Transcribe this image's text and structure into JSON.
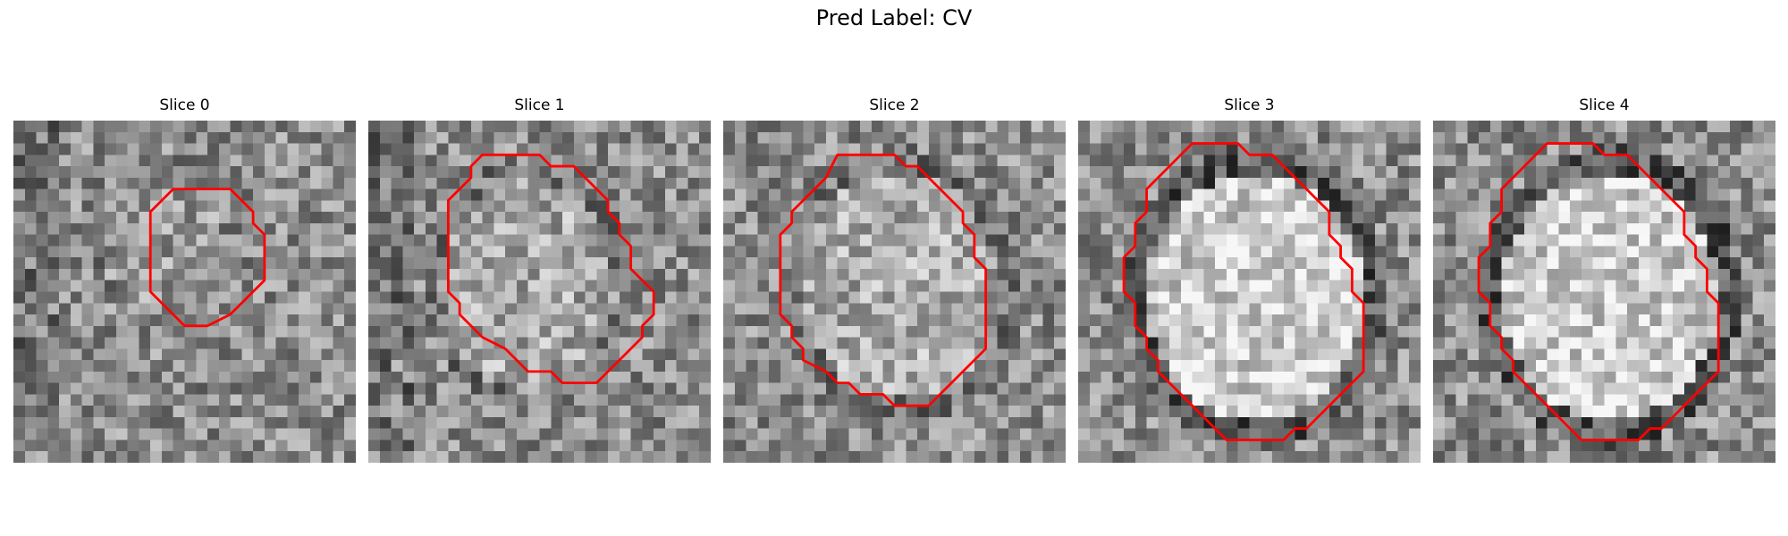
{
  "suptitle": "Pred Label: CV",
  "contour_color": "#ff0000",
  "slices": [
    {
      "title": "Slice 0",
      "seed": 11,
      "blob": 0.15,
      "center": [
        13.0,
        10.5
      ],
      "radius": [
        5.5,
        6.5
      ],
      "contour": [
        [
          14,
          6
        ],
        [
          19,
          6
        ],
        [
          20,
          7
        ],
        [
          21,
          8
        ],
        [
          21,
          9
        ],
        [
          22,
          10
        ],
        [
          22,
          12
        ],
        [
          22,
          14
        ],
        [
          21,
          15
        ],
        [
          20,
          16
        ],
        [
          19,
          17
        ],
        [
          17,
          18
        ],
        [
          15,
          18
        ],
        [
          14,
          17
        ],
        [
          13,
          16
        ],
        [
          12,
          15
        ],
        [
          12,
          13
        ],
        [
          12,
          11
        ],
        [
          12,
          8
        ],
        [
          13,
          7
        ]
      ]
    },
    {
      "title": "Slice 1",
      "seed": 23,
      "blob": 0.35,
      "center": [
        14.0,
        14.5
      ],
      "radius": [
        8.0,
        9.5
      ],
      "contour": [
        [
          10,
          3
        ],
        [
          15,
          3
        ],
        [
          16,
          4
        ],
        [
          18,
          4
        ],
        [
          19,
          5
        ],
        [
          20,
          6
        ],
        [
          21,
          7
        ],
        [
          21,
          8
        ],
        [
          22,
          9
        ],
        [
          22,
          10
        ],
        [
          23,
          11
        ],
        [
          23,
          12
        ],
        [
          23,
          13
        ],
        [
          24,
          14
        ],
        [
          25,
          15
        ],
        [
          25,
          17
        ],
        [
          24,
          18
        ],
        [
          24,
          19
        ],
        [
          23,
          20
        ],
        [
          22,
          21
        ],
        [
          21,
          22
        ],
        [
          20,
          23
        ],
        [
          18,
          23
        ],
        [
          17,
          23
        ],
        [
          16,
          22
        ],
        [
          14,
          22
        ],
        [
          13,
          21
        ],
        [
          12,
          20
        ],
        [
          10,
          19
        ],
        [
          9,
          18
        ],
        [
          8,
          17
        ],
        [
          8,
          16
        ],
        [
          7,
          15
        ],
        [
          7,
          14
        ],
        [
          7,
          12
        ],
        [
          7,
          10
        ],
        [
          7,
          7
        ],
        [
          8,
          6
        ],
        [
          9,
          5
        ],
        [
          9,
          4
        ]
      ]
    },
    {
      "title": "Slice 2",
      "seed": 37,
      "blob": 0.4,
      "center": [
        15.5,
        14.5
      ],
      "radius": [
        9.0,
        10.5
      ],
      "contour": [
        [
          10,
          3
        ],
        [
          15,
          3
        ],
        [
          16,
          4
        ],
        [
          17,
          4
        ],
        [
          18,
          5
        ],
        [
          19,
          6
        ],
        [
          20,
          7
        ],
        [
          21,
          8
        ],
        [
          21,
          9
        ],
        [
          22,
          10
        ],
        [
          22,
          12
        ],
        [
          23,
          13
        ],
        [
          23,
          15
        ],
        [
          23,
          18
        ],
        [
          23,
          20
        ],
        [
          22,
          21
        ],
        [
          21,
          22
        ],
        [
          20,
          23
        ],
        [
          19,
          24
        ],
        [
          18,
          25
        ],
        [
          16,
          25
        ],
        [
          15,
          25
        ],
        [
          14,
          24
        ],
        [
          12,
          24
        ],
        [
          11,
          23
        ],
        [
          10,
          23
        ],
        [
          9,
          22
        ],
        [
          7,
          21
        ],
        [
          7,
          20
        ],
        [
          6,
          19
        ],
        [
          6,
          18
        ],
        [
          5,
          17
        ],
        [
          5,
          15
        ],
        [
          5,
          13
        ],
        [
          5,
          10
        ],
        [
          6,
          9
        ],
        [
          6,
          8
        ],
        [
          7,
          7
        ],
        [
          8,
          6
        ],
        [
          9,
          5
        ]
      ]
    },
    {
      "title": "Slice 3",
      "seed": 51,
      "blob": 0.85,
      "center": [
        15.5,
        15.5
      ],
      "radius": [
        10.0,
        11.5
      ],
      "contour": [
        [
          10,
          2
        ],
        [
          14,
          2
        ],
        [
          15,
          3
        ],
        [
          17,
          3
        ],
        [
          18,
          4
        ],
        [
          19,
          5
        ],
        [
          20,
          6
        ],
        [
          21,
          7
        ],
        [
          22,
          8
        ],
        [
          22,
          10
        ],
        [
          23,
          11
        ],
        [
          23,
          12
        ],
        [
          24,
          13
        ],
        [
          24,
          15
        ],
        [
          25,
          16
        ],
        [
          25,
          19
        ],
        [
          25,
          22
        ],
        [
          24,
          23
        ],
        [
          23,
          24
        ],
        [
          22,
          25
        ],
        [
          21,
          26
        ],
        [
          20,
          27
        ],
        [
          19,
          27
        ],
        [
          18,
          28
        ],
        [
          15,
          28
        ],
        [
          13,
          28
        ],
        [
          12,
          27
        ],
        [
          11,
          26
        ],
        [
          10,
          25
        ],
        [
          9,
          24
        ],
        [
          8,
          23
        ],
        [
          7,
          22
        ],
        [
          7,
          21
        ],
        [
          6,
          20
        ],
        [
          6,
          19
        ],
        [
          5,
          18
        ],
        [
          5,
          16
        ],
        [
          4,
          15
        ],
        [
          4,
          12
        ],
        [
          5,
          11
        ],
        [
          5,
          9
        ],
        [
          6,
          8
        ],
        [
          6,
          6
        ],
        [
          7,
          5
        ],
        [
          8,
          4
        ],
        [
          9,
          3
        ]
      ]
    },
    {
      "title": "Slice 4",
      "seed": 67,
      "blob": 0.85,
      "center": [
        15.5,
        15.5
      ],
      "radius": [
        10.0,
        11.5
      ],
      "contour": [
        [
          10,
          2
        ],
        [
          14,
          2
        ],
        [
          15,
          3
        ],
        [
          17,
          3
        ],
        [
          18,
          4
        ],
        [
          19,
          5
        ],
        [
          20,
          6
        ],
        [
          21,
          7
        ],
        [
          22,
          8
        ],
        [
          22,
          10
        ],
        [
          23,
          11
        ],
        [
          23,
          12
        ],
        [
          24,
          13
        ],
        [
          24,
          15
        ],
        [
          25,
          16
        ],
        [
          25,
          19
        ],
        [
          25,
          22
        ],
        [
          24,
          23
        ],
        [
          23,
          24
        ],
        [
          22,
          25
        ],
        [
          21,
          26
        ],
        [
          20,
          27
        ],
        [
          19,
          27
        ],
        [
          18,
          28
        ],
        [
          15,
          28
        ],
        [
          13,
          28
        ],
        [
          12,
          27
        ],
        [
          11,
          26
        ],
        [
          10,
          25
        ],
        [
          9,
          24
        ],
        [
          8,
          23
        ],
        [
          7,
          22
        ],
        [
          7,
          21
        ],
        [
          6,
          20
        ],
        [
          6,
          19
        ],
        [
          5,
          18
        ],
        [
          5,
          16
        ],
        [
          4,
          15
        ],
        [
          4,
          12
        ],
        [
          5,
          11
        ],
        [
          5,
          9
        ],
        [
          6,
          8
        ],
        [
          6,
          6
        ],
        [
          7,
          5
        ],
        [
          8,
          4
        ],
        [
          9,
          3
        ]
      ]
    }
  ]
}
